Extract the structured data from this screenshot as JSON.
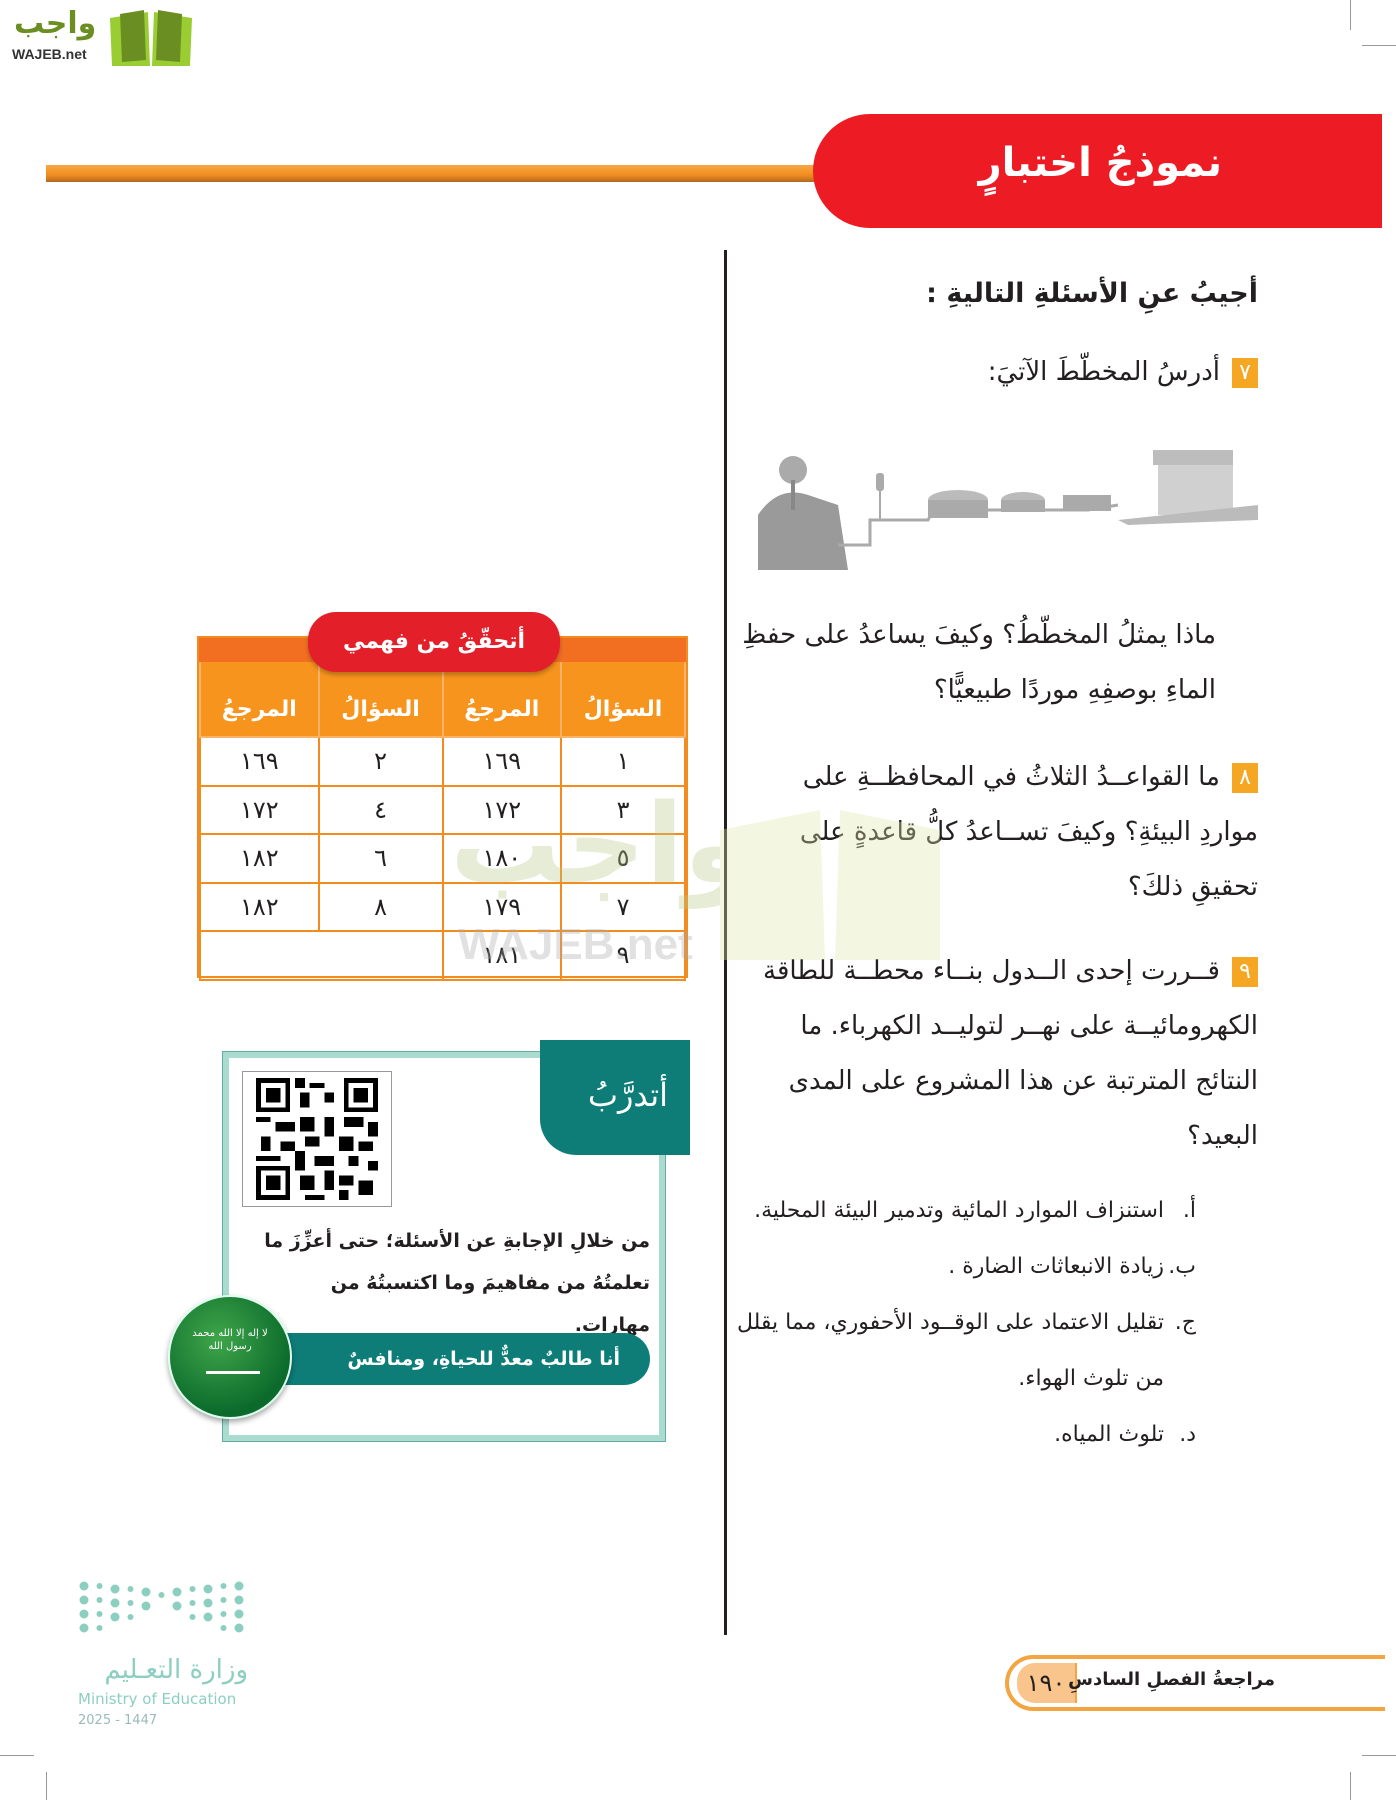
{
  "logo": {
    "arabic": "واجب",
    "latin": "WAJEB.net"
  },
  "header": {
    "title": "نموذجُ اختبارٍ",
    "accent": "#ed1c24",
    "line_color": "#f28c1f"
  },
  "main": {
    "heading": "أجيبُ عنِ الأسئلةِ التاليةِ :",
    "q7": {
      "number": "٧",
      "text": "أدرسُ المخطّطَ الآتيَ:",
      "question": "ماذا يمثلُ المخطّطُ؟ وكيفَ يساعدُ على حفظِ الماءِ بوصفِهِ موردًا طبيعيًّا؟"
    },
    "q8": {
      "number": "٨",
      "text": "ما القواعــدُ الثلاثُ في المحافظــةِ على مواردِ البيئةِ؟ وكيفَ تســاعدُ كلُّ قاعدةٍ على تحقيقِ ذلكَ؟"
    },
    "q9": {
      "number": "٩",
      "text": "قــررت إحدى الــدول بنــاء محطــة للطاقة الكهرومائيــة على نهــر لتوليــد الكهرباء. ما النتائج المترتبة عن هذا المشروع على المدى البعيد؟",
      "options": [
        {
          "letter": "أ.",
          "text": "استنزاف الموارد المائية وتدمير البيئة المحلية."
        },
        {
          "letter": "ب.",
          "text": "زيادة الانبعاثات الضارة ."
        },
        {
          "letter": "ج.",
          "text": "تقليل الاعتماد على الوقــود الأحفوري، مما يقلل",
          "cont": "من تلوث الهواء."
        },
        {
          "letter": "د.",
          "text": "تلوث المياه."
        }
      ]
    }
  },
  "check": {
    "title": "أتحقّقُ من فهمي",
    "headers": [
      "السؤالُ",
      "المرجعُ",
      "السؤالُ",
      "المرجعُ"
    ],
    "rows": [
      [
        "١",
        "١٦٩",
        "٢",
        "١٦٩"
      ],
      [
        "٣",
        "١٧٢",
        "٤",
        "١٧٢"
      ],
      [
        "٥",
        "١٨٠",
        "٦",
        "١٨٢"
      ],
      [
        "٧",
        "١٧٩",
        "٨",
        "١٨٢"
      ],
      [
        "٩",
        "١٨١",
        "",
        ""
      ]
    ]
  },
  "practice": {
    "tab": "أتدرَّبُ",
    "text": "من خلالِ الإجابةِ عن الأسئلة؛ حتى أعزِّزَ ما تعلمتُهُ من مفاهيمَ وما اكتسبتُهُ من مهارات.",
    "banner": "أنا طالبٌ معدٌّ للحياةِ، ومنافسٌ عالميًّا.",
    "flag_text": "لا إله إلا الله محمد رسول الله",
    "teal": "#0e7d78"
  },
  "footer": {
    "page": "١٩٠",
    "chapter": "مراجعةُ الفصلِ السادسِ"
  },
  "ministry": {
    "arabic": "وزارة التعـليم",
    "english": "Ministry of Education",
    "year": "2025 - 1447"
  },
  "watermark": {
    "arabic": "واجب",
    "latin": "WAJEB.net"
  }
}
